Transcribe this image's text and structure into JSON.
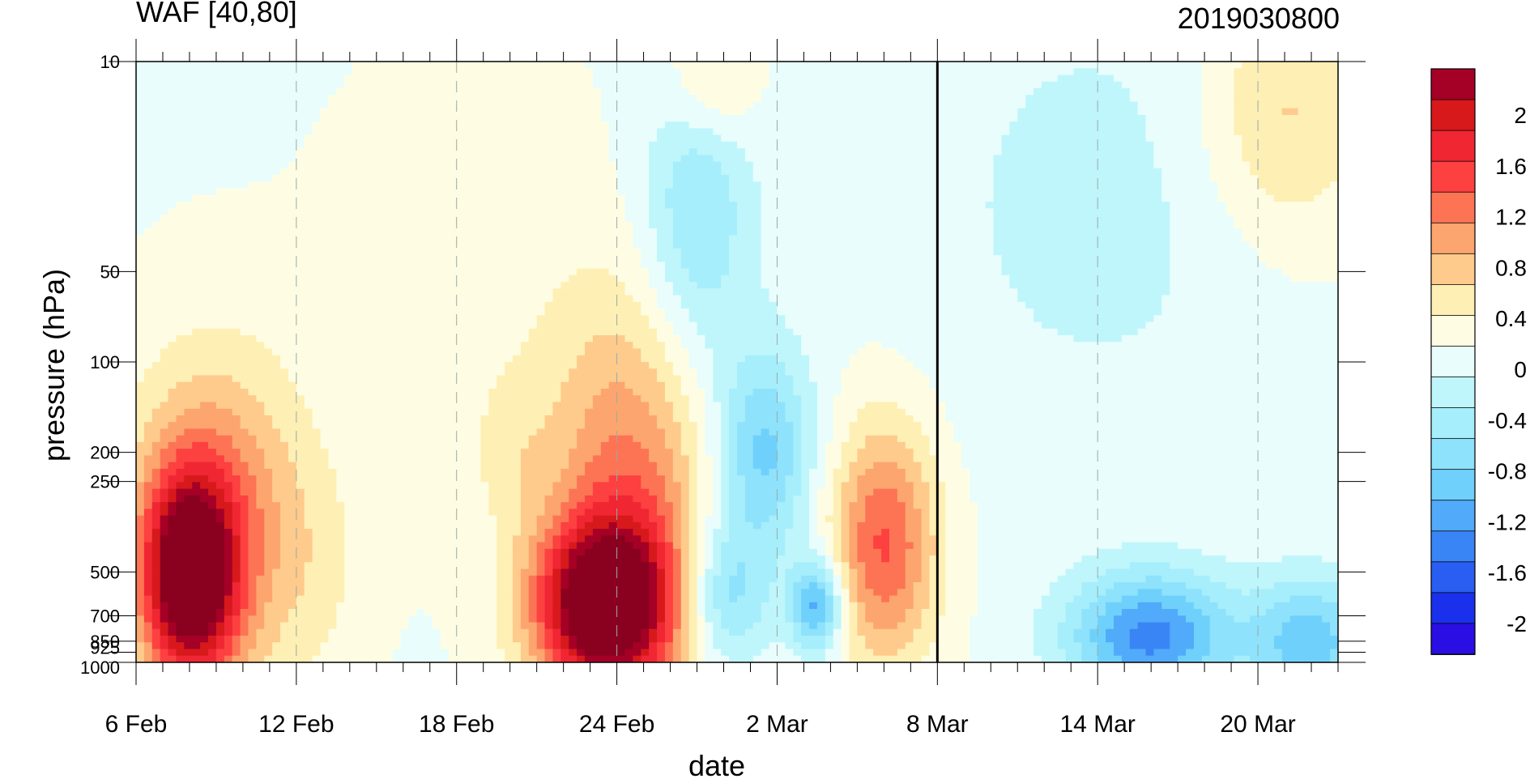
{
  "chart_data": {
    "type": "heatmap",
    "title": "WAF [40,80]",
    "subtitle": "2019030800",
    "xlabel": "date",
    "ylabel": "pressure (hPa)",
    "x_ticks": [
      {
        "label": "6 Feb",
        "day": 0
      },
      {
        "label": "12 Feb",
        "day": 6
      },
      {
        "label": "18 Feb",
        "day": 12
      },
      {
        "label": "24 Feb",
        "day": 18
      },
      {
        "label": "2 Mar",
        "day": 24
      },
      {
        "label": "8 Mar",
        "day": 30
      },
      {
        "label": "14 Mar",
        "day": 36
      },
      {
        "label": "20 Mar",
        "day": 42
      }
    ],
    "x_range_days": [
      0,
      45
    ],
    "y_ticks": [
      "10",
      "50",
      "100",
      "200",
      "250",
      "500",
      "700",
      "850",
      "925",
      "1000"
    ],
    "y_scale": "log",
    "y_range": [
      1000,
      10
    ],
    "forecast_start_line": "8 Mar",
    "colorbar": {
      "labels": [
        "2",
        "1.6",
        "1.2",
        "0.8",
        "0.4",
        "0",
        "-0.4",
        "-0.8",
        "-1.2",
        "-1.6",
        "-2"
      ],
      "colors": [
        "#a50026",
        "#d7191c",
        "#f02633",
        "#fd4040",
        "#fd7455",
        "#fda56f",
        "#fecb8c",
        "#feefb4",
        "#fefde3",
        "#e9fdfd",
        "#bff6fb",
        "#a6eefb",
        "#8fe2fb",
        "#6fd1fb",
        "#52aafa",
        "#3a85f6",
        "#2a5df2",
        "#1a30ec",
        "#2a0ee3"
      ]
    },
    "features": [
      {
        "name": "warm-max-early-feb",
        "day": 2,
        "pressure": 500,
        "value": 1.6
      },
      {
        "name": "warm-max-late-feb",
        "day": 17.5,
        "pressure": 700,
        "value": 1.6
      },
      {
        "name": "warm-lobe-early-mar",
        "day": 28,
        "pressure": 400,
        "value": 0.8
      },
      {
        "name": "cold-min-mar",
        "day": 38,
        "pressure": 850,
        "value": -1.2
      }
    ]
  }
}
